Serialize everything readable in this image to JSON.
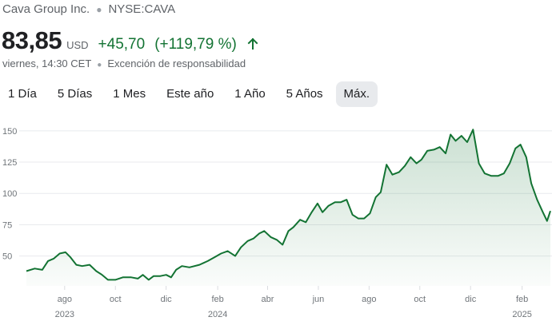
{
  "header": {
    "company": "Cava Group Inc.",
    "ticker": "NYSE:CAVA"
  },
  "quote": {
    "price": "83,85",
    "currency": "USD",
    "change": "+45,70",
    "change_pct": "(+119,79 %)",
    "direction_icon": "arrow-up-icon",
    "timestamp": "viernes, 14:30 CET",
    "disclaimer": "Excención de responsabilidad",
    "positive_color": "#137333"
  },
  "ranges": {
    "selected": "Máx.",
    "items": [
      "1 Día",
      "5 Días",
      "1 Mes",
      "Este año",
      "1 Año",
      "5 Años",
      "Máx."
    ]
  },
  "chart_data": {
    "type": "area",
    "ylim": [
      30,
      155
    ],
    "yticks": [
      50,
      75,
      100,
      125,
      150
    ],
    "grid": true,
    "line_color": "#137333",
    "xticks": [
      {
        "label": "ago",
        "sub": "2023",
        "x": "2023-08"
      },
      {
        "label": "oct",
        "sub": "",
        "x": "2023-10"
      },
      {
        "label": "dic",
        "sub": "",
        "x": "2023-12"
      },
      {
        "label": "feb",
        "sub": "2024",
        "x": "2024-02"
      },
      {
        "label": "abr",
        "sub": "",
        "x": "2024-04"
      },
      {
        "label": "jun",
        "sub": "",
        "x": "2024-06"
      },
      {
        "label": "ago",
        "sub": "",
        "x": "2024-08"
      },
      {
        "label": "oct",
        "sub": "",
        "x": "2024-10"
      },
      {
        "label": "dic",
        "sub": "",
        "x": "2024-12"
      },
      {
        "label": "feb",
        "sub": "2025",
        "x": "2025-02"
      }
    ],
    "series": [
      {
        "x": [
          "2023-06-16",
          "2023-06-26",
          "2023-07-05",
          "2023-07-12",
          "2023-07-19",
          "2023-07-26",
          "2023-08-02",
          "2023-08-08",
          "2023-08-15",
          "2023-08-22",
          "2023-08-31",
          "2023-09-08",
          "2023-09-15",
          "2023-09-22",
          "2023-10-01",
          "2023-10-10",
          "2023-10-20",
          "2023-10-28",
          "2023-11-03",
          "2023-11-10",
          "2023-11-16",
          "2023-11-24",
          "2023-12-01",
          "2023-12-07",
          "2023-12-13",
          "2023-12-20",
          "2023-12-29",
          "2024-01-10",
          "2024-01-20",
          "2024-01-28",
          "2024-02-05",
          "2024-02-13",
          "2024-02-22",
          "2024-02-29",
          "2024-03-08",
          "2024-03-15",
          "2024-03-22",
          "2024-03-28",
          "2024-04-05",
          "2024-04-12",
          "2024-04-19",
          "2024-04-26",
          "2024-05-02",
          "2024-05-10",
          "2024-05-17",
          "2024-05-24",
          "2024-05-31",
          "2024-06-06",
          "2024-06-13",
          "2024-06-21",
          "2024-06-28",
          "2024-07-05",
          "2024-07-12",
          "2024-07-19",
          "2024-07-26",
          "2024-08-02",
          "2024-08-09",
          "2024-08-15",
          "2024-08-22",
          "2024-08-29",
          "2024-09-06",
          "2024-09-13",
          "2024-09-20",
          "2024-09-27",
          "2024-10-03",
          "2024-10-10",
          "2024-10-18",
          "2024-10-25",
          "2024-11-01",
          "2024-11-07",
          "2024-11-13",
          "2024-11-20",
          "2024-11-27",
          "2024-12-04",
          "2024-12-11",
          "2024-12-18",
          "2024-12-26",
          "2025-01-03",
          "2025-01-10",
          "2025-01-17",
          "2025-01-24",
          "2025-01-30",
          "2025-02-06",
          "2025-02-12",
          "2025-02-19",
          "2025-02-26",
          "2025-03-03",
          "2025-03-07"
        ],
        "values": [
          38,
          40,
          39,
          46,
          48,
          52,
          53,
          49,
          43,
          42,
          43,
          38,
          35,
          31,
          31,
          33,
          33,
          32,
          35,
          31,
          34,
          34,
          35,
          33,
          39,
          42,
          41,
          43,
          46,
          49,
          52,
          54,
          50,
          57,
          62,
          64,
          68,
          70,
          65,
          63,
          59,
          70,
          73,
          79,
          77,
          85,
          92,
          85,
          90,
          93,
          93,
          95,
          83,
          80,
          80,
          84,
          97,
          101,
          123,
          115,
          117,
          122,
          129,
          124,
          127,
          134,
          135,
          137,
          132,
          147,
          142,
          146,
          141,
          151,
          124,
          116,
          114,
          114,
          116,
          124,
          136,
          139,
          129,
          108,
          95,
          85,
          78,
          86
        ]
      }
    ]
  }
}
